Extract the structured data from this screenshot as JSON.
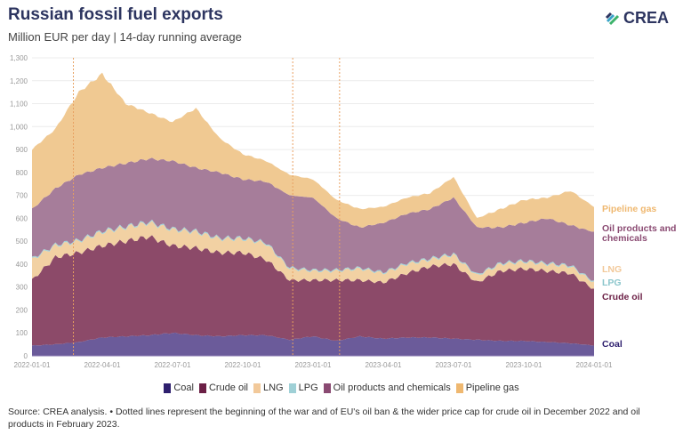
{
  "header": {
    "title": "Russian fossil fuel exports",
    "subtitle": "Million EUR per day | 14-day running average",
    "logo": "CREA"
  },
  "source": "Source: CREA analysis. • Dotted lines represent the beginning of the war and of EU's oil ban & the wider price cap for crude oil in December 2022 and oil products in February 2023.",
  "chart_data": {
    "type": "area",
    "title": "Russian fossil fuel exports",
    "ylabel": "Million EUR per day",
    "ylim": [
      0,
      1300
    ],
    "yticks": [
      "0",
      "100",
      "200",
      "300",
      "400",
      "500",
      "600",
      "700",
      "800",
      "900",
      "1,000",
      "1,100",
      "1,200",
      "1,300"
    ],
    "xticks": [
      "2022-01-01",
      "2022-04-01",
      "2022-07-01",
      "2022-10-01",
      "2023-01-01",
      "2023-04-01",
      "2023-07-01",
      "2023-10-01",
      "2024-01-01"
    ],
    "x": [
      "2022-01",
      "2022-02",
      "2022-03",
      "2022-04",
      "2022-05",
      "2022-06",
      "2022-07",
      "2022-08",
      "2022-09",
      "2022-10",
      "2022-11",
      "2022-12",
      "2023-01",
      "2023-02",
      "2023-03",
      "2023-04",
      "2023-05",
      "2023-06",
      "2023-07",
      "2023-08",
      "2023-09",
      "2023-10",
      "2023-11",
      "2023-12",
      "2024-01"
    ],
    "markers": [
      "2022-02-24",
      "2022-12-05",
      "2023-02-05"
    ],
    "legend_position": "bottom",
    "series": [
      {
        "name": "Coal",
        "color": "#6b5b9a",
        "legend_color": "#2e1f6e",
        "values": [
          45,
          50,
          60,
          80,
          85,
          90,
          100,
          90,
          85,
          90,
          90,
          70,
          85,
          65,
          85,
          75,
          80,
          80,
          75,
          70,
          65,
          65,
          60,
          55,
          45
        ]
      },
      {
        "name": "Crude oil",
        "color": "#8c4a69",
        "legend_color": "#6b1f45",
        "values": [
          285,
          380,
          390,
          400,
          415,
          430,
          380,
          380,
          365,
          360,
          330,
          260,
          245,
          265,
          245,
          245,
          280,
          310,
          325,
          250,
          305,
          315,
          310,
          305,
          245
        ]
      },
      {
        "name": "LNG",
        "color": "#f2d1a3",
        "legend_color": "#f2c99a",
        "values": [
          90,
          50,
          50,
          60,
          60,
          60,
          70,
          70,
          60,
          60,
          70,
          50,
          40,
          40,
          50,
          40,
          40,
          30,
          40,
          30,
          30,
          30,
          30,
          30,
          30
        ]
      },
      {
        "name": "LPG",
        "color": "#a3d3d8",
        "legend_color": "#9fd0d6",
        "values": [
          5,
          5,
          5,
          5,
          5,
          5,
          5,
          5,
          5,
          5,
          5,
          5,
          5,
          5,
          5,
          5,
          5,
          5,
          5,
          5,
          5,
          5,
          5,
          5,
          5
        ]
      },
      {
        "name": "Oil products and chemicals",
        "color": "#a67d9a",
        "legend_color": "#8a4a72",
        "values": [
          215,
          245,
          285,
          275,
          275,
          275,
          295,
          275,
          285,
          255,
          265,
          315,
          315,
          225,
          175,
          215,
          215,
          215,
          245,
          205,
          155,
          165,
          195,
          175,
          215
        ]
      },
      {
        "name": "Pipeline gas",
        "color": "#f0c992",
        "legend_color": "#efb870",
        "values": [
          260,
          260,
          360,
          410,
          260,
          200,
          170,
          260,
          150,
          110,
          90,
          90,
          80,
          80,
          80,
          70,
          70,
          70,
          90,
          40,
          80,
          100,
          90,
          150,
          110
        ]
      }
    ],
    "end_labels": [
      {
        "text": "Pipeline gas",
        "color": "#efb870"
      },
      {
        "text": "Oil products and",
        "text2": "chemicals",
        "color": "#8a4a72"
      },
      {
        "text": "LNG",
        "color": "#f2c99a"
      },
      {
        "text": "LPG",
        "color": "#8cc6cc"
      },
      {
        "text": "Crude oil",
        "color": "#6b1f45"
      },
      {
        "text": "Coal",
        "color": "#2e1f6e"
      }
    ]
  }
}
